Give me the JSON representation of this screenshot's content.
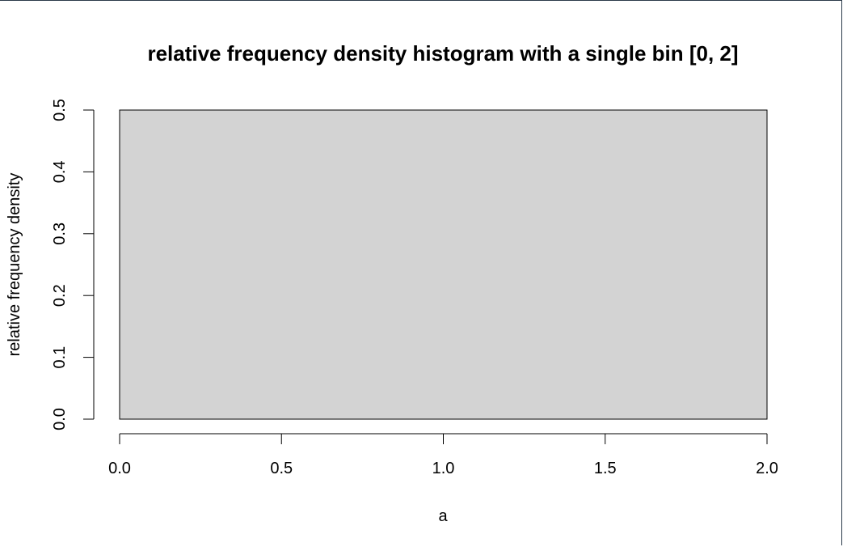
{
  "chart_data": {
    "type": "bar",
    "title": "relative frequency density histogram with a single bin [0, 2]",
    "xlabel": "a",
    "ylabel": "relative frequency density",
    "bins": [
      {
        "start": 0,
        "end": 2,
        "density": 0.5
      }
    ],
    "xlim": [
      0,
      2
    ],
    "ylim": [
      0,
      0.5
    ],
    "x_ticks": [
      0,
      0.5,
      1,
      1.5,
      2
    ],
    "x_tick_labels": [
      "0.0",
      "0.5",
      "1.0",
      "1.5",
      "2.0"
    ],
    "y_ticks": [
      0,
      0.1,
      0.2,
      0.3,
      0.4,
      0.5
    ],
    "y_tick_labels": [
      "0.0",
      "0.1",
      "0.2",
      "0.3",
      "0.4",
      "0.5"
    ],
    "grid": false,
    "bar_color": "#d3d3d3",
    "bar_edge_color": "#000000"
  }
}
